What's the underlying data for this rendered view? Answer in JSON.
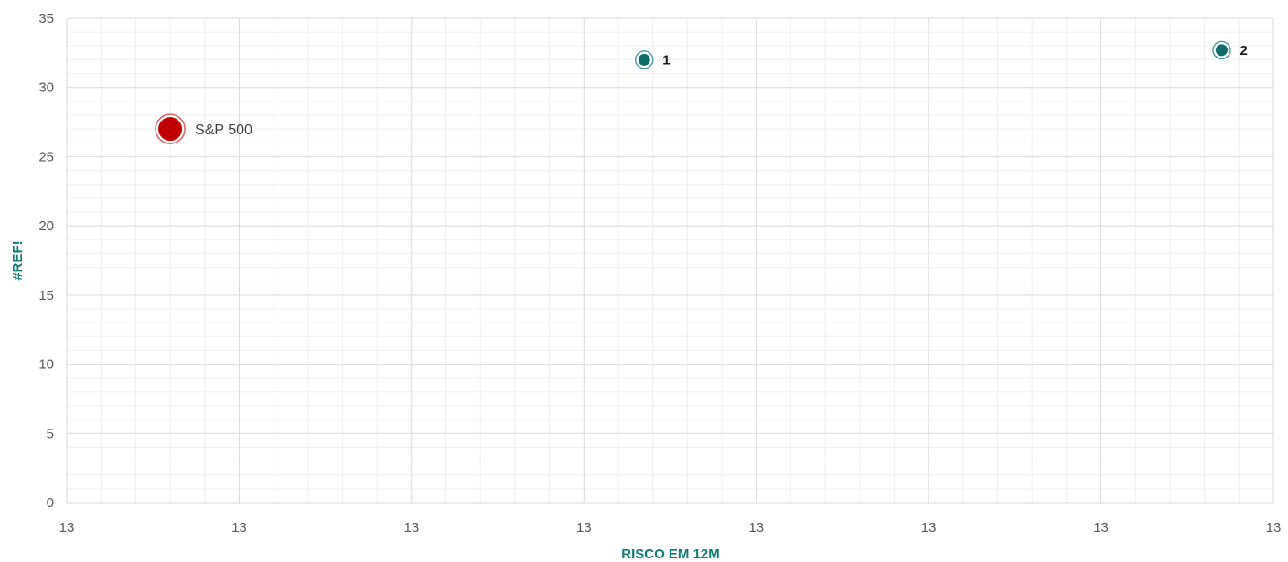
{
  "chart_data": {
    "type": "scatter",
    "title": "",
    "xlabel": "RISCO EM 12M",
    "ylabel": "#REF!",
    "ylim": [
      0,
      35
    ],
    "y_ticks": [
      0,
      5,
      10,
      15,
      20,
      25,
      30,
      35
    ],
    "x_tick_labels": [
      "13",
      "13",
      "13",
      "13",
      "13",
      "13",
      "13",
      "13"
    ],
    "xlim_index": [
      0,
      7
    ],
    "grid": true,
    "points": [
      {
        "label": "S&P 500",
        "x_index": 0.6,
        "y": 27,
        "color": "#c00000",
        "style": "benchmark"
      },
      {
        "label": "1",
        "x_index": 3.35,
        "y": 32,
        "color": "#0f6e6c",
        "style": "fund"
      },
      {
        "label": "2",
        "x_index": 6.7,
        "y": 32.7,
        "color": "#0f6e6c",
        "style": "fund"
      }
    ],
    "colors": {
      "grid_major": "#d9d9d9",
      "grid_minor": "#f0f0f0",
      "axis_title": "#0f7b77"
    }
  }
}
